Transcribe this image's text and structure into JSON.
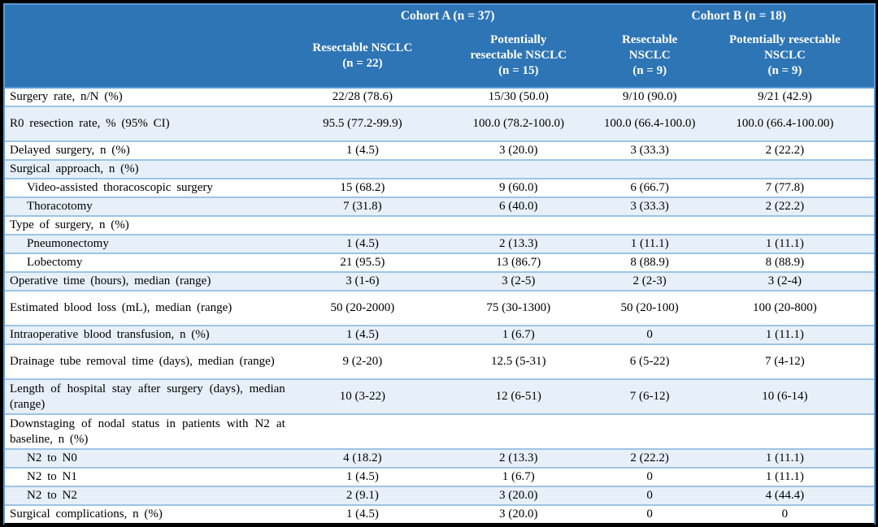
{
  "colors": {
    "header_bg": "#2E75B6",
    "header_text": "#FFFFFF",
    "outer_border": "#5B9BD5",
    "row_border": "#9DC3E6",
    "row_alt_bg": "#E7F0F9",
    "frame_bg": "#000000"
  },
  "table": {
    "header": {
      "cohort_a": "Cohort A (n = 37)",
      "cohort_b": "Cohort B (n = 18)",
      "columns": [
        "Resectable NSCLC\n(n = 22)",
        "Potentially\nresectable NSCLC\n(n = 15)",
        "Resectable NSCLC\n(n = 9)",
        "Potentially resectable\nNSCLC\n(n = 9)"
      ]
    },
    "rows": [
      {
        "label": "Surgery rate, n/N (%)",
        "indent": false,
        "tall": false,
        "values": [
          "22/28 (78.6)",
          "15/30 (50.0)",
          "9/10 (90.0)",
          "9/21 (42.9)"
        ]
      },
      {
        "label": "R0 resection rate, % (95% CI)",
        "indent": false,
        "tall": true,
        "values": [
          "95.5 (77.2-99.9)",
          "100.0 (78.2-100.0)",
          "100.0 (66.4-100.0)",
          "100.0 (66.4-100.00)"
        ]
      },
      {
        "label": "Delayed surgery, n (%)",
        "indent": false,
        "tall": false,
        "values": [
          "1 (4.5)",
          "3 (20.0)",
          "3 (33.3)",
          "2 (22.2)"
        ]
      },
      {
        "label": "Surgical approach, n (%)",
        "indent": false,
        "tall": false,
        "values": [
          "",
          "",
          "",
          ""
        ]
      },
      {
        "label": "Video-assisted thoracoscopic surgery",
        "indent": true,
        "tall": false,
        "values": [
          "15 (68.2)",
          "9 (60.0)",
          "6 (66.7)",
          "7 (77.8)"
        ]
      },
      {
        "label": "Thoracotomy",
        "indent": true,
        "tall": false,
        "values": [
          "7 (31.8)",
          "6 (40.0)",
          "3 (33.3)",
          "2 (22.2)"
        ]
      },
      {
        "label": "Type of surgery, n (%)",
        "indent": false,
        "tall": false,
        "values": [
          "",
          "",
          "",
          ""
        ]
      },
      {
        "label": "Pneumonectomy",
        "indent": true,
        "tall": false,
        "values": [
          "1 (4.5)",
          "2 (13.3)",
          "1 (11.1)",
          "1 (11.1)"
        ]
      },
      {
        "label": "Lobectomy",
        "indent": true,
        "tall": false,
        "values": [
          "21 (95.5)",
          "13 (86.7)",
          "8 (88.9)",
          "8 (88.9)"
        ]
      },
      {
        "label": "Operative time (hours), median (range)",
        "indent": false,
        "tall": false,
        "values": [
          "3 (1-6)",
          "3 (2-5)",
          "2 (2-3)",
          "3 (2-4)"
        ]
      },
      {
        "label": "Estimated blood loss (mL), median (range)",
        "indent": false,
        "tall": true,
        "values": [
          "50 (20-2000)",
          "75 (30-1300)",
          "50 (20-100)",
          "100 (20-800)"
        ]
      },
      {
        "label": "Intraoperative blood transfusion, n (%)",
        "indent": false,
        "tall": false,
        "values": [
          "1 (4.5)",
          "1 (6.7)",
          "0",
          "1 (11.1)"
        ]
      },
      {
        "label": "Drainage tube removal time (days), median (range)",
        "indent": false,
        "tall": true,
        "values": [
          "9 (2-20)",
          "12.5 (5-31)",
          "6 (5-22)",
          "7 (4-12)"
        ]
      },
      {
        "label": "Length of hospital stay after surgery (days), median (range)",
        "indent": false,
        "tall": true,
        "values": [
          "10 (3-22)",
          "12 (6-51)",
          "7 (6-12)",
          "10 (6-14)"
        ]
      },
      {
        "label": "Downstaging of nodal status in patients with N2 at baseline, n (%)",
        "indent": false,
        "tall": true,
        "values": [
          "",
          "",
          "",
          ""
        ]
      },
      {
        "label": "N2 to N0",
        "indent": true,
        "tall": false,
        "values": [
          "4 (18.2)",
          "2 (13.3)",
          "2 (22.2)",
          "1 (11.1)"
        ]
      },
      {
        "label": "N2 to N1",
        "indent": true,
        "tall": false,
        "values": [
          "1 (4.5)",
          "1 (6.7)",
          "0",
          "1 (11.1)"
        ]
      },
      {
        "label": "N2 to N2",
        "indent": true,
        "tall": false,
        "values": [
          "2 (9.1)",
          "3 (20.0)",
          "0",
          "4 (44.4)"
        ]
      },
      {
        "label": "Surgical complications, n (%)",
        "indent": false,
        "tall": false,
        "values": [
          "1 (4.5)",
          "3 (20.0)",
          "0",
          "0"
        ]
      }
    ]
  }
}
